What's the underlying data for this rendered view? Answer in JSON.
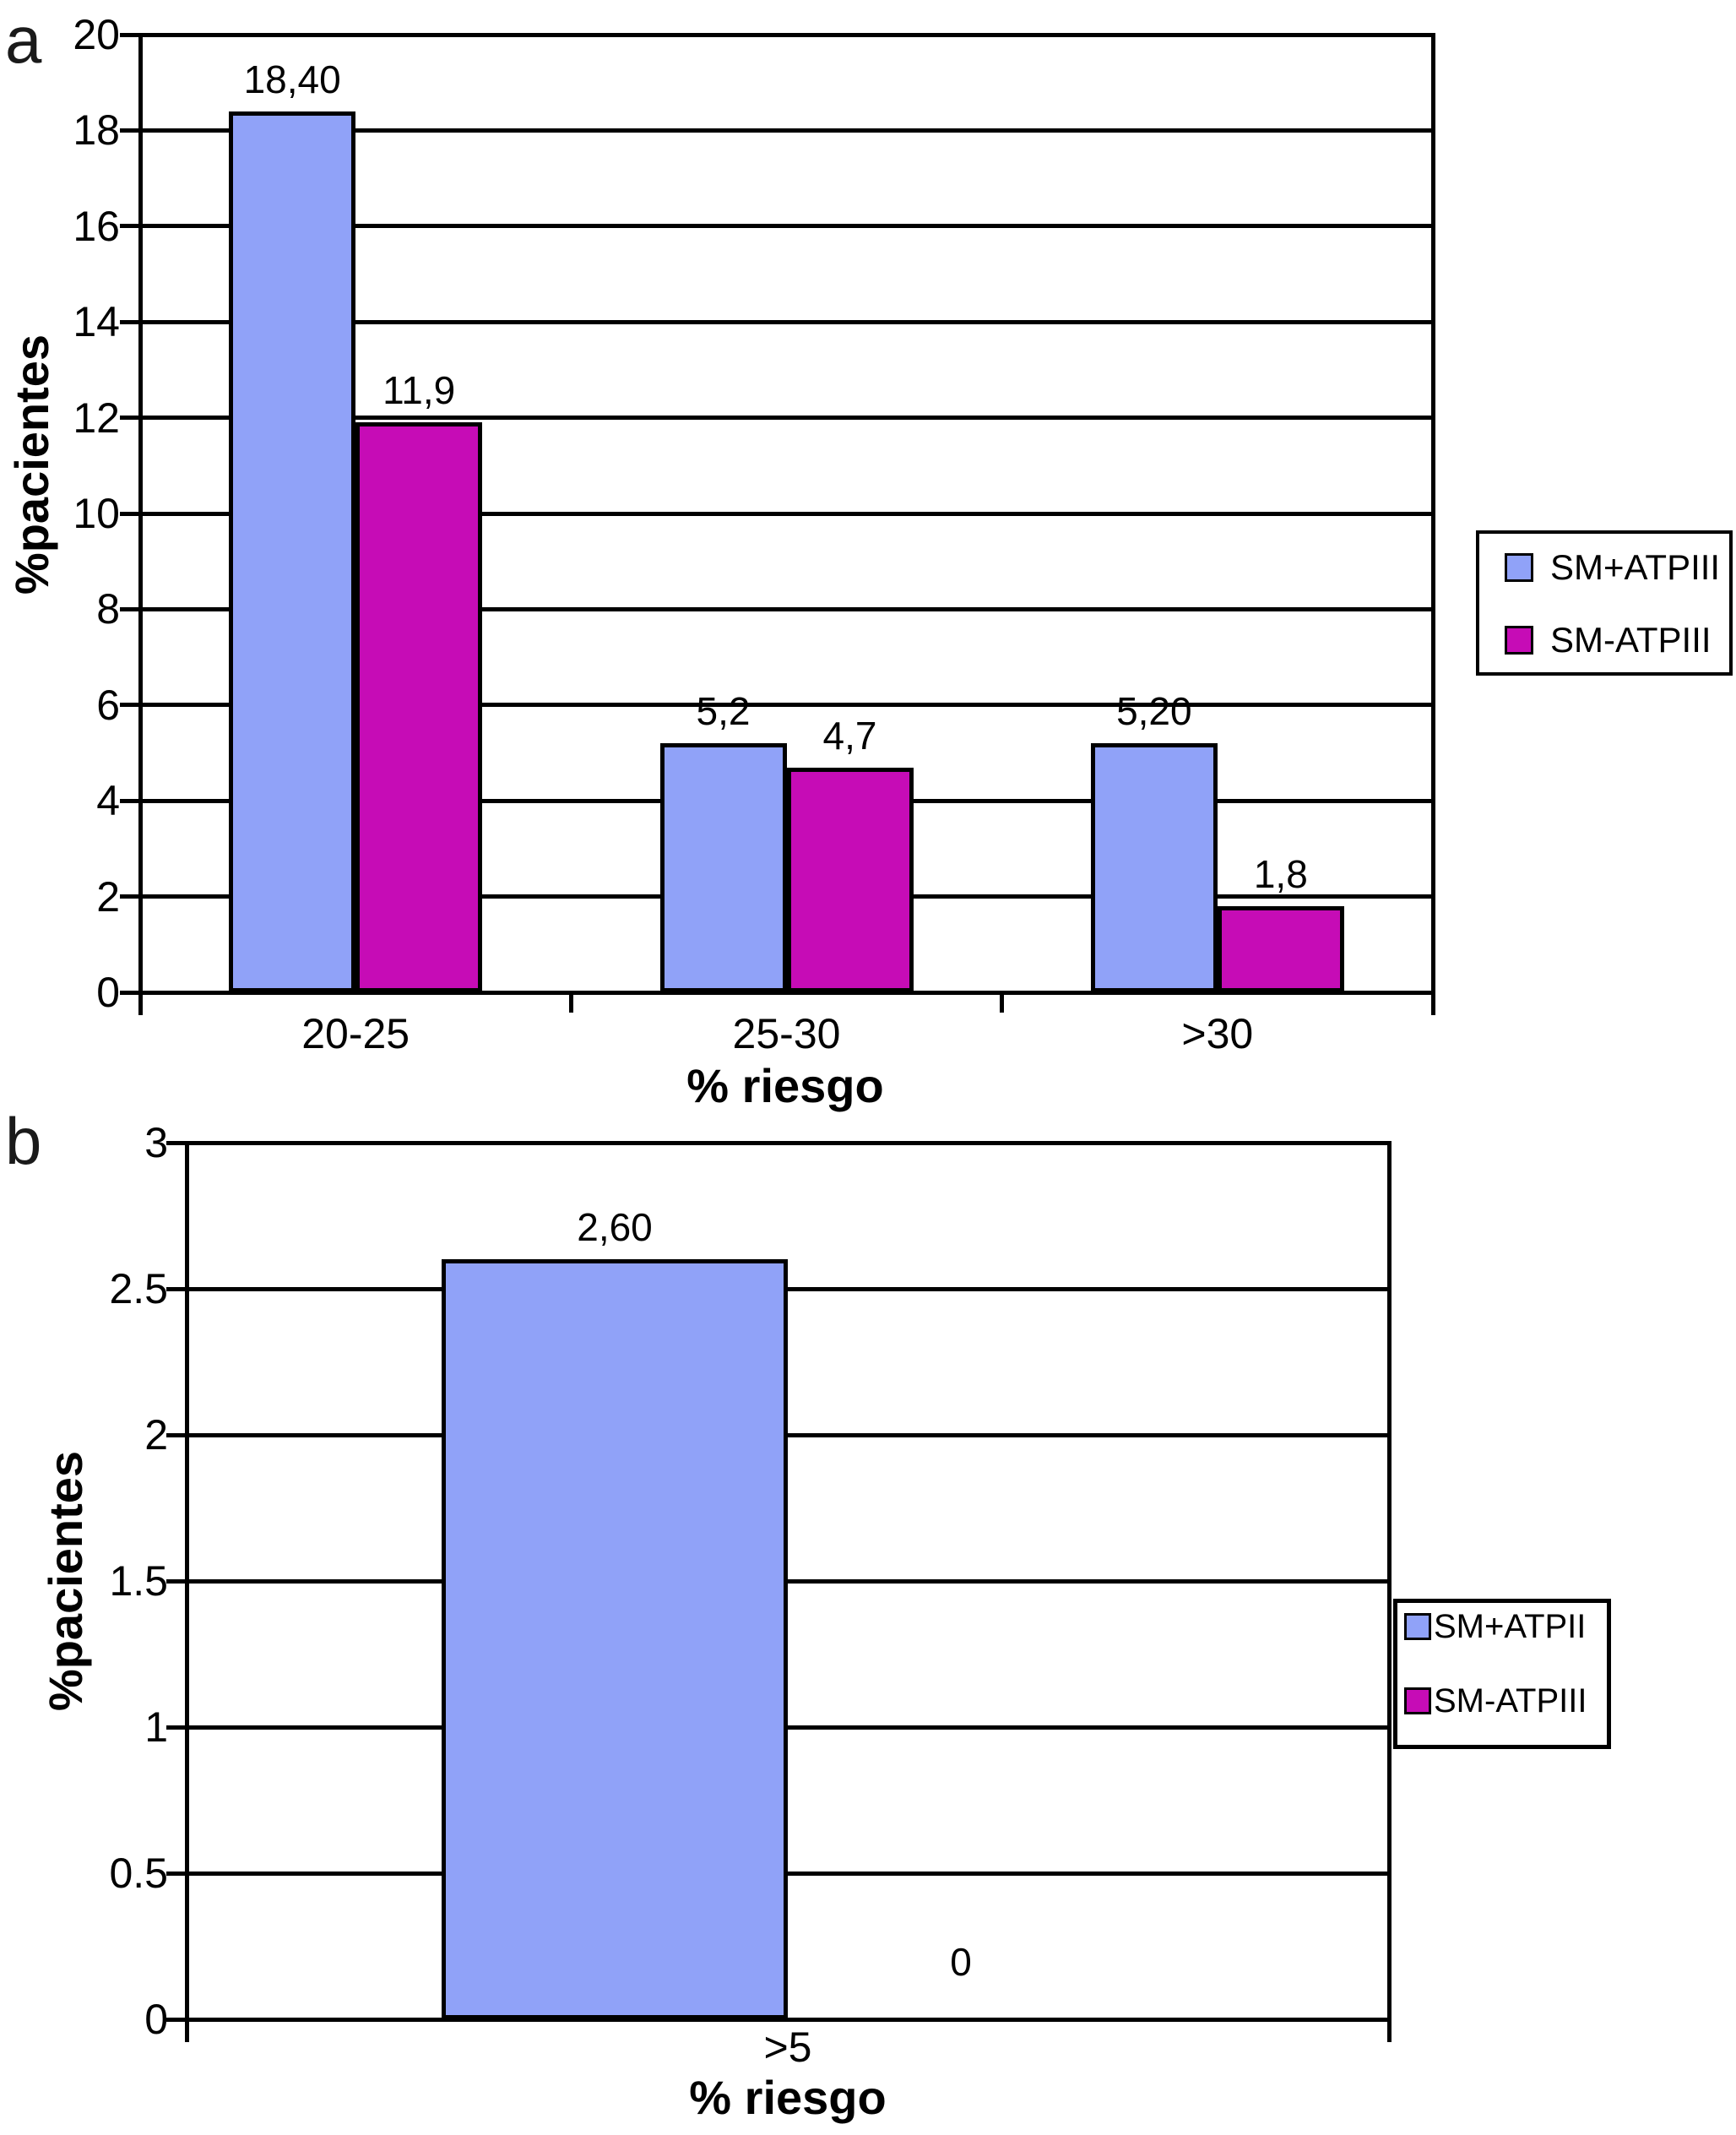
{
  "figure_background": "#FFFFFF",
  "axis_color": "#000000",
  "chart_data": [
    {
      "type": "bar",
      "panel_letter": "a",
      "title": "",
      "ylabel": "%pacientes",
      "xlabel": "% riesgo",
      "categories": [
        "20-25",
        "25-30",
        ">30"
      ],
      "series": [
        {
          "name": "SM+ATPIII",
          "color": "#90A2F8",
          "values": [
            18.4,
            5.2,
            5.2
          ],
          "value_labels": [
            "18,40",
            "5,2",
            "5,20"
          ]
        },
        {
          "name": "SM-ATPIII",
          "color": "#C60CB6",
          "values": [
            11.9,
            4.7,
            1.8
          ],
          "value_labels": [
            "11,9",
            "4,7",
            "1,8"
          ]
        }
      ],
      "ylim": [
        0,
        20
      ],
      "ytick_step": 2,
      "ytick_labels": [
        "0",
        "2",
        "4",
        "6",
        "8",
        "10",
        "12",
        "14",
        "16",
        "18",
        "20"
      ],
      "grid": true,
      "legend_position": "right-outside"
    },
    {
      "type": "bar",
      "panel_letter": "b",
      "title": "",
      "ylabel": "%pacientes",
      "xlabel": "% riesgo",
      "categories": [
        ">5"
      ],
      "series": [
        {
          "name": "SM+ATPII",
          "color": "#90A2F8",
          "values": [
            2.6
          ],
          "value_labels": [
            "2,60"
          ]
        },
        {
          "name": "SM-ATPIII",
          "color": "#C60CB6",
          "values": [
            0
          ],
          "value_labels": [
            "0"
          ]
        }
      ],
      "ylim": [
        0,
        3
      ],
      "ytick_step": 0.5,
      "ytick_labels": [
        "0",
        "0.5",
        "1",
        "1.5",
        "2",
        "2.5",
        "3"
      ],
      "grid": true,
      "legend_position": "right-outside"
    }
  ]
}
